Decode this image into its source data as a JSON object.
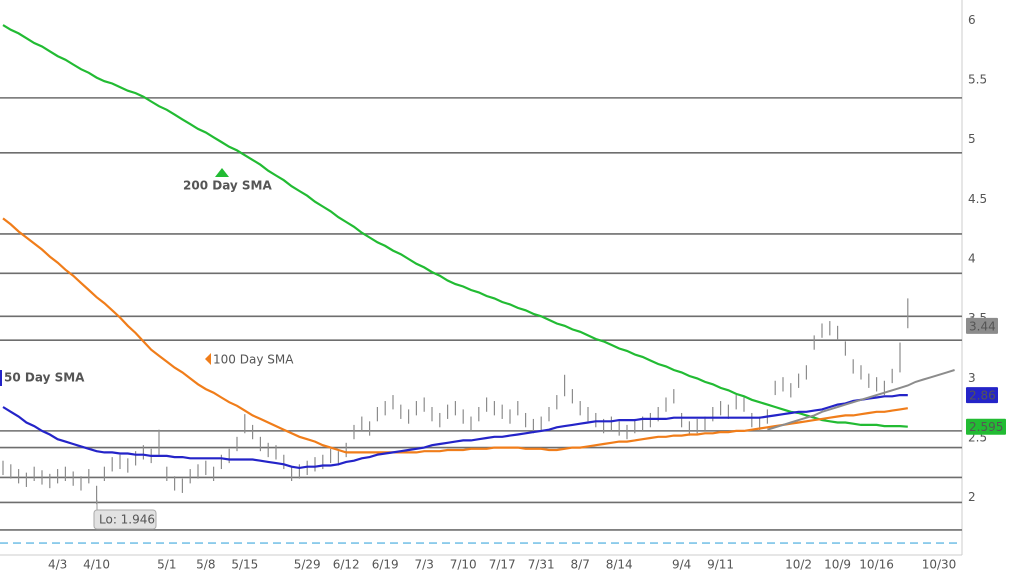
{
  "chart_data": {
    "type": "stock",
    "ylim": [
      1.52,
      6.17
    ],
    "yticks": [
      2,
      2.5,
      3,
      3.5,
      4,
      4.5,
      5,
      5.5,
      6
    ],
    "categories": [
      null,
      null,
      null,
      null,
      null,
      null,
      null,
      "4/3",
      null,
      null,
      null,
      null,
      "4/10",
      null,
      null,
      null,
      null,
      null,
      null,
      null,
      null,
      "5/1",
      null,
      null,
      null,
      null,
      "5/8",
      null,
      null,
      null,
      null,
      "5/15",
      null,
      null,
      null,
      null,
      null,
      null,
      null,
      "5/29",
      null,
      null,
      null,
      null,
      "6/12",
      null,
      null,
      null,
      null,
      "6/19",
      null,
      null,
      null,
      null,
      "7/3",
      null,
      null,
      null,
      null,
      "7/10",
      null,
      null,
      null,
      null,
      "7/17",
      null,
      null,
      null,
      null,
      "7/31",
      null,
      null,
      null,
      null,
      "8/7",
      null,
      null,
      null,
      null,
      "8/14",
      null,
      null,
      null,
      null,
      null,
      null,
      null,
      "9/4",
      null,
      null,
      null,
      null,
      "9/11",
      null,
      null,
      null,
      null,
      null,
      null,
      null,
      null,
      null,
      "10/2",
      null,
      null,
      null,
      null,
      "10/9",
      null,
      null,
      null,
      null,
      "10/16",
      null,
      null,
      null,
      null,
      null,
      null,
      null,
      "10/30",
      null,
      null
    ],
    "bars": {
      "color": "#8c8c8c",
      "last": 3.44,
      "high": [
        2.31,
        2.28,
        2.24,
        2.21,
        2.26,
        2.23,
        2.2,
        2.24,
        2.26,
        2.22,
        2.18,
        2.24,
        2.1,
        2.26,
        2.34,
        2.36,
        2.33,
        2.39,
        2.44,
        2.41,
        2.57,
        2.26,
        2.18,
        2.16,
        2.24,
        2.28,
        2.31,
        2.26,
        2.36,
        2.41,
        2.51,
        2.7,
        2.61,
        2.51,
        2.46,
        2.44,
        2.36,
        2.26,
        2.28,
        2.31,
        2.34,
        2.36,
        2.41,
        2.39,
        2.46,
        2.61,
        2.68,
        2.64,
        2.76,
        2.81,
        2.86,
        2.78,
        2.74,
        2.81,
        2.84,
        2.76,
        2.71,
        2.78,
        2.81,
        2.74,
        2.68,
        2.76,
        2.84,
        2.81,
        2.78,
        2.74,
        2.81,
        2.71,
        2.66,
        2.68,
        2.76,
        2.86,
        3.03,
        2.91,
        2.81,
        2.76,
        2.71,
        2.66,
        2.68,
        2.64,
        2.61,
        2.66,
        2.68,
        2.71,
        2.76,
        2.84,
        2.91,
        2.71,
        2.64,
        2.66,
        2.68,
        2.76,
        2.81,
        2.78,
        2.86,
        2.84,
        2.71,
        2.68,
        2.74,
        2.98,
        3.01,
        2.96,
        3.04,
        3.11,
        3.36,
        3.46,
        3.48,
        3.44,
        3.31,
        3.16,
        3.11,
        3.04,
        3.01,
        2.98,
        3.08,
        3.3,
        3.67,
        null,
        null,
        null,
        null,
        null,
        null
      ],
      "low": [
        2.19,
        2.16,
        2.12,
        2.09,
        2.14,
        2.11,
        2.08,
        2.12,
        2.14,
        2.1,
        2.06,
        2.12,
        1.946,
        2.14,
        2.22,
        2.24,
        2.21,
        2.27,
        2.32,
        2.29,
        2.36,
        2.14,
        2.06,
        2.04,
        2.12,
        2.16,
        2.19,
        2.14,
        2.24,
        2.29,
        2.39,
        2.54,
        2.49,
        2.39,
        2.34,
        2.32,
        2.24,
        2.14,
        2.16,
        2.19,
        2.22,
        2.24,
        2.29,
        2.27,
        2.34,
        2.49,
        2.56,
        2.52,
        2.64,
        2.69,
        2.74,
        2.66,
        2.62,
        2.69,
        2.72,
        2.64,
        2.59,
        2.66,
        2.69,
        2.62,
        2.56,
        2.64,
        2.72,
        2.69,
        2.66,
        2.62,
        2.69,
        2.59,
        2.54,
        2.56,
        2.64,
        2.74,
        2.85,
        2.79,
        2.69,
        2.64,
        2.59,
        2.54,
        2.56,
        2.52,
        2.49,
        2.54,
        2.56,
        2.59,
        2.64,
        2.72,
        2.79,
        2.59,
        2.52,
        2.54,
        2.56,
        2.64,
        2.69,
        2.66,
        2.74,
        2.72,
        2.59,
        2.56,
        2.62,
        2.86,
        2.89,
        2.84,
        2.92,
        2.99,
        3.24,
        3.34,
        3.36,
        3.32,
        3.19,
        3.04,
        2.99,
        2.92,
        2.89,
        2.86,
        2.96,
        3.05,
        3.42,
        null,
        null,
        null,
        null,
        null,
        null
      ]
    },
    "series": [
      {
        "name": "200 Day SMA",
        "color": "#22bb33",
        "values": [
          5.96,
          5.92,
          5.89,
          5.85,
          5.81,
          5.78,
          5.74,
          5.7,
          5.67,
          5.63,
          5.59,
          5.56,
          5.52,
          5.49,
          5.47,
          5.44,
          5.41,
          5.39,
          5.36,
          5.32,
          5.28,
          5.25,
          5.21,
          5.17,
          5.13,
          5.09,
          5.06,
          5.02,
          4.98,
          4.94,
          4.91,
          4.87,
          4.83,
          4.79,
          4.74,
          4.7,
          4.66,
          4.61,
          4.57,
          4.53,
          4.48,
          4.44,
          4.4,
          4.35,
          4.31,
          4.27,
          4.22,
          4.18,
          4.14,
          4.11,
          4.07,
          4.04,
          4.0,
          3.96,
          3.93,
          3.89,
          3.86,
          3.82,
          3.79,
          3.77,
          3.74,
          3.72,
          3.69,
          3.67,
          3.64,
          3.62,
          3.59,
          3.57,
          3.54,
          3.52,
          3.49,
          3.46,
          3.44,
          3.41,
          3.39,
          3.36,
          3.33,
          3.31,
          3.28,
          3.25,
          3.23,
          3.2,
          3.18,
          3.15,
          3.12,
          3.1,
          3.07,
          3.05,
          3.02,
          3.0,
          2.97,
          2.95,
          2.92,
          2.9,
          2.87,
          2.85,
          2.82,
          2.8,
          2.78,
          2.76,
          2.74,
          2.72,
          2.71,
          2.69,
          2.67,
          2.65,
          2.64,
          2.63,
          2.63,
          2.62,
          2.61,
          2.61,
          2.61,
          2.6,
          2.6,
          2.6,
          2.595,
          null,
          null,
          null,
          null,
          null,
          null
        ]
      },
      {
        "name": "100 Day SMA",
        "color": "#f07d1a",
        "values": [
          4.34,
          4.29,
          4.23,
          4.18,
          4.13,
          4.08,
          4.02,
          3.97,
          3.91,
          3.86,
          3.8,
          3.74,
          3.68,
          3.63,
          3.57,
          3.51,
          3.44,
          3.38,
          3.31,
          3.24,
          3.19,
          3.14,
          3.09,
          3.05,
          3.0,
          2.95,
          2.91,
          2.88,
          2.84,
          2.8,
          2.77,
          2.73,
          2.69,
          2.66,
          2.63,
          2.6,
          2.57,
          2.54,
          2.51,
          2.49,
          2.47,
          2.44,
          2.42,
          2.4,
          2.38,
          2.38,
          2.38,
          2.38,
          2.38,
          2.38,
          2.38,
          2.38,
          2.38,
          2.38,
          2.39,
          2.39,
          2.39,
          2.4,
          2.4,
          2.4,
          2.41,
          2.41,
          2.41,
          2.42,
          2.42,
          2.42,
          2.42,
          2.41,
          2.41,
          2.41,
          2.4,
          2.4,
          2.41,
          2.42,
          2.42,
          2.43,
          2.44,
          2.45,
          2.46,
          2.47,
          2.47,
          2.48,
          2.49,
          2.5,
          2.51,
          2.51,
          2.52,
          2.52,
          2.53,
          2.53,
          2.54,
          2.54,
          2.55,
          2.55,
          2.56,
          2.56,
          2.57,
          2.58,
          2.59,
          2.6,
          2.61,
          2.62,
          2.63,
          2.64,
          2.65,
          2.66,
          2.67,
          2.68,
          2.69,
          2.69,
          2.7,
          2.71,
          2.72,
          2.72,
          2.73,
          2.74,
          2.75,
          null,
          null,
          null,
          null,
          null,
          null
        ]
      },
      {
        "name": "50 Day SMA",
        "color": "#2424c8",
        "values": [
          2.76,
          2.72,
          2.68,
          2.63,
          2.6,
          2.56,
          2.53,
          2.49,
          2.47,
          2.45,
          2.43,
          2.41,
          2.39,
          2.38,
          2.38,
          2.37,
          2.37,
          2.36,
          2.36,
          2.35,
          2.35,
          2.35,
          2.34,
          2.34,
          2.33,
          2.33,
          2.33,
          2.33,
          2.33,
          2.32,
          2.32,
          2.32,
          2.32,
          2.31,
          2.3,
          2.29,
          2.28,
          2.26,
          2.25,
          2.26,
          2.26,
          2.27,
          2.27,
          2.28,
          2.3,
          2.31,
          2.33,
          2.34,
          2.36,
          2.37,
          2.38,
          2.39,
          2.4,
          2.41,
          2.42,
          2.44,
          2.45,
          2.46,
          2.47,
          2.48,
          2.48,
          2.49,
          2.5,
          2.51,
          2.51,
          2.52,
          2.53,
          2.54,
          2.55,
          2.56,
          2.57,
          2.59,
          2.6,
          2.61,
          2.62,
          2.63,
          2.64,
          2.64,
          2.64,
          2.65,
          2.65,
          2.65,
          2.66,
          2.66,
          2.66,
          2.66,
          2.67,
          2.67,
          2.67,
          2.67,
          2.67,
          2.67,
          2.67,
          2.67,
          2.67,
          2.67,
          2.67,
          2.67,
          2.68,
          2.69,
          2.7,
          2.71,
          2.72,
          2.72,
          2.73,
          2.74,
          2.76,
          2.78,
          2.79,
          2.81,
          2.82,
          2.83,
          2.84,
          2.85,
          2.85,
          2.86,
          2.86,
          null,
          null,
          null,
          null,
          null,
          null
        ]
      }
    ],
    "trendline": {
      "color": "#8c8c8c",
      "values": [
        null,
        null,
        null,
        null,
        null,
        null,
        null,
        null,
        null,
        null,
        null,
        null,
        null,
        null,
        null,
        null,
        null,
        null,
        null,
        null,
        null,
        null,
        null,
        null,
        null,
        null,
        null,
        null,
        null,
        null,
        null,
        null,
        null,
        null,
        null,
        null,
        null,
        null,
        null,
        null,
        null,
        null,
        null,
        null,
        null,
        null,
        null,
        null,
        null,
        null,
        null,
        null,
        null,
        null,
        null,
        null,
        null,
        null,
        null,
        null,
        null,
        null,
        null,
        null,
        null,
        null,
        null,
        null,
        null,
        null,
        null,
        null,
        null,
        null,
        null,
        null,
        null,
        null,
        null,
        null,
        null,
        null,
        null,
        null,
        null,
        null,
        null,
        null,
        null,
        null,
        null,
        null,
        null,
        null,
        null,
        null,
        null,
        null,
        2.57,
        2.59,
        2.61,
        2.63,
        2.65,
        2.67,
        2.69,
        2.72,
        2.74,
        2.76,
        2.78,
        2.8,
        2.82,
        2.84,
        2.86,
        2.88,
        2.9,
        2.92,
        2.94,
        2.97,
        2.99,
        3.01,
        3.03,
        3.05,
        3.07
      ]
    },
    "hlines": [
      5.35,
      4.89,
      4.21,
      3.88,
      3.52,
      3.32,
      2.56,
      2.42,
      2.17,
      1.96,
      1.73
    ],
    "dashed_line": 1.62,
    "annotation": "Lo: 1.946"
  }
}
